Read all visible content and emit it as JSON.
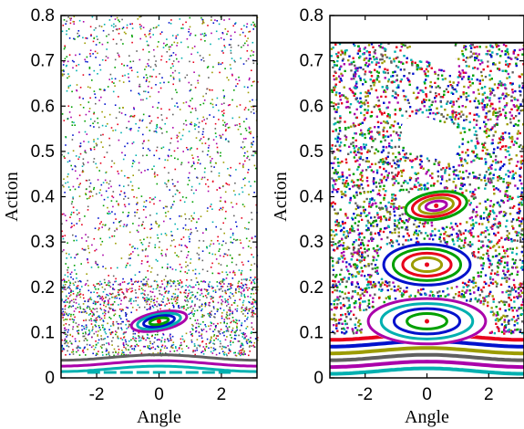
{
  "chart_data": [
    {
      "type": "scatter",
      "panel": "left",
      "title": "",
      "xlabel": "Angle",
      "ylabel": "Action",
      "xlim": [
        -3.14159,
        3.14159
      ],
      "ylim": [
        0,
        0.8
      ],
      "xticks": [
        -2,
        0,
        2
      ],
      "yticks": [
        0,
        0.1,
        0.2,
        0.3,
        0.4,
        0.5,
        0.6,
        0.7,
        0.8
      ],
      "xtick_labels": [
        "-2",
        "0",
        "2"
      ],
      "ytick_labels": [
        "0",
        "0.1",
        "0.2",
        "0.3",
        "0.4",
        "0.5",
        "0.6",
        "0.7",
        "0.8"
      ],
      "grid": false,
      "legend": "none",
      "description_of_content": "Poincare section: scattered chaotic points filling the phase space, a small elliptical island near (0, 0.12), and curved invariant lines near the bottom",
      "islands": [
        {
          "center_x": 0,
          "center_y": 0.125,
          "half_width_x": 0.9,
          "half_height_y": 0.02,
          "tilt": -0.35
        }
      ],
      "invariant_curves_y": [
        0.02,
        0.032,
        0.045
      ],
      "colors": [
        "#e8001c",
        "#0011cc",
        "#00a000",
        "#9c9c00",
        "#aa00aa",
        "#00b0b0",
        "#606060"
      ]
    },
    {
      "type": "scatter",
      "panel": "right",
      "title": "",
      "xlabel": "Angle",
      "ylabel": "Action",
      "xlim": [
        -3.14159,
        3.14159
      ],
      "ylim": [
        0,
        0.8
      ],
      "xticks": [
        -2,
        0,
        2
      ],
      "yticks": [
        0,
        0.1,
        0.2,
        0.3,
        0.4,
        0.5,
        0.6,
        0.7,
        0.8
      ],
      "xtick_labels": [
        "-2",
        "0",
        "2"
      ],
      "ytick_labels": [
        "0",
        "0.1",
        "0.2",
        "0.3",
        "0.4",
        "0.5",
        "0.6",
        "0.7",
        "0.8"
      ],
      "grid": false,
      "legend": "none",
      "description_of_content": "Dense Poincare section with a chaotic sea, stable islands near (0, 0.38), (0, 0.25) and (0, 0.12), white empty regions near (0, 0.53) and (0.3, 0.72), a horizontal black line at 0.74, and invariant curves at the bottom",
      "islands": [
        {
          "center_x": 0.3,
          "center_y": 0.38,
          "half_width_x": 1.0,
          "half_height_y": 0.03,
          "tilt": -0.3
        },
        {
          "center_x": 0,
          "center_y": 0.25,
          "half_width_x": 1.4,
          "half_height_y": 0.045,
          "tilt": 0
        },
        {
          "center_x": 0,
          "center_y": 0.125,
          "half_width_x": 1.9,
          "half_height_y": 0.05,
          "tilt": 0
        }
      ],
      "empty_regions": [
        {
          "center_x": 0.1,
          "center_y": 0.53,
          "half_width_x": 1.0,
          "half_height_y": 0.04
        },
        {
          "center_x": 0.2,
          "center_y": 0.72,
          "half_width_x": 0.9,
          "half_height_y": 0.02
        }
      ],
      "separatrix_line_y": 0.74,
      "invariant_curves_y": [
        0.015,
        0.03,
        0.045,
        0.06,
        0.075,
        0.09
      ],
      "colors": [
        "#e8001c",
        "#0011cc",
        "#00a000",
        "#9c9c00",
        "#aa00aa",
        "#00b0b0",
        "#606060"
      ]
    }
  ]
}
